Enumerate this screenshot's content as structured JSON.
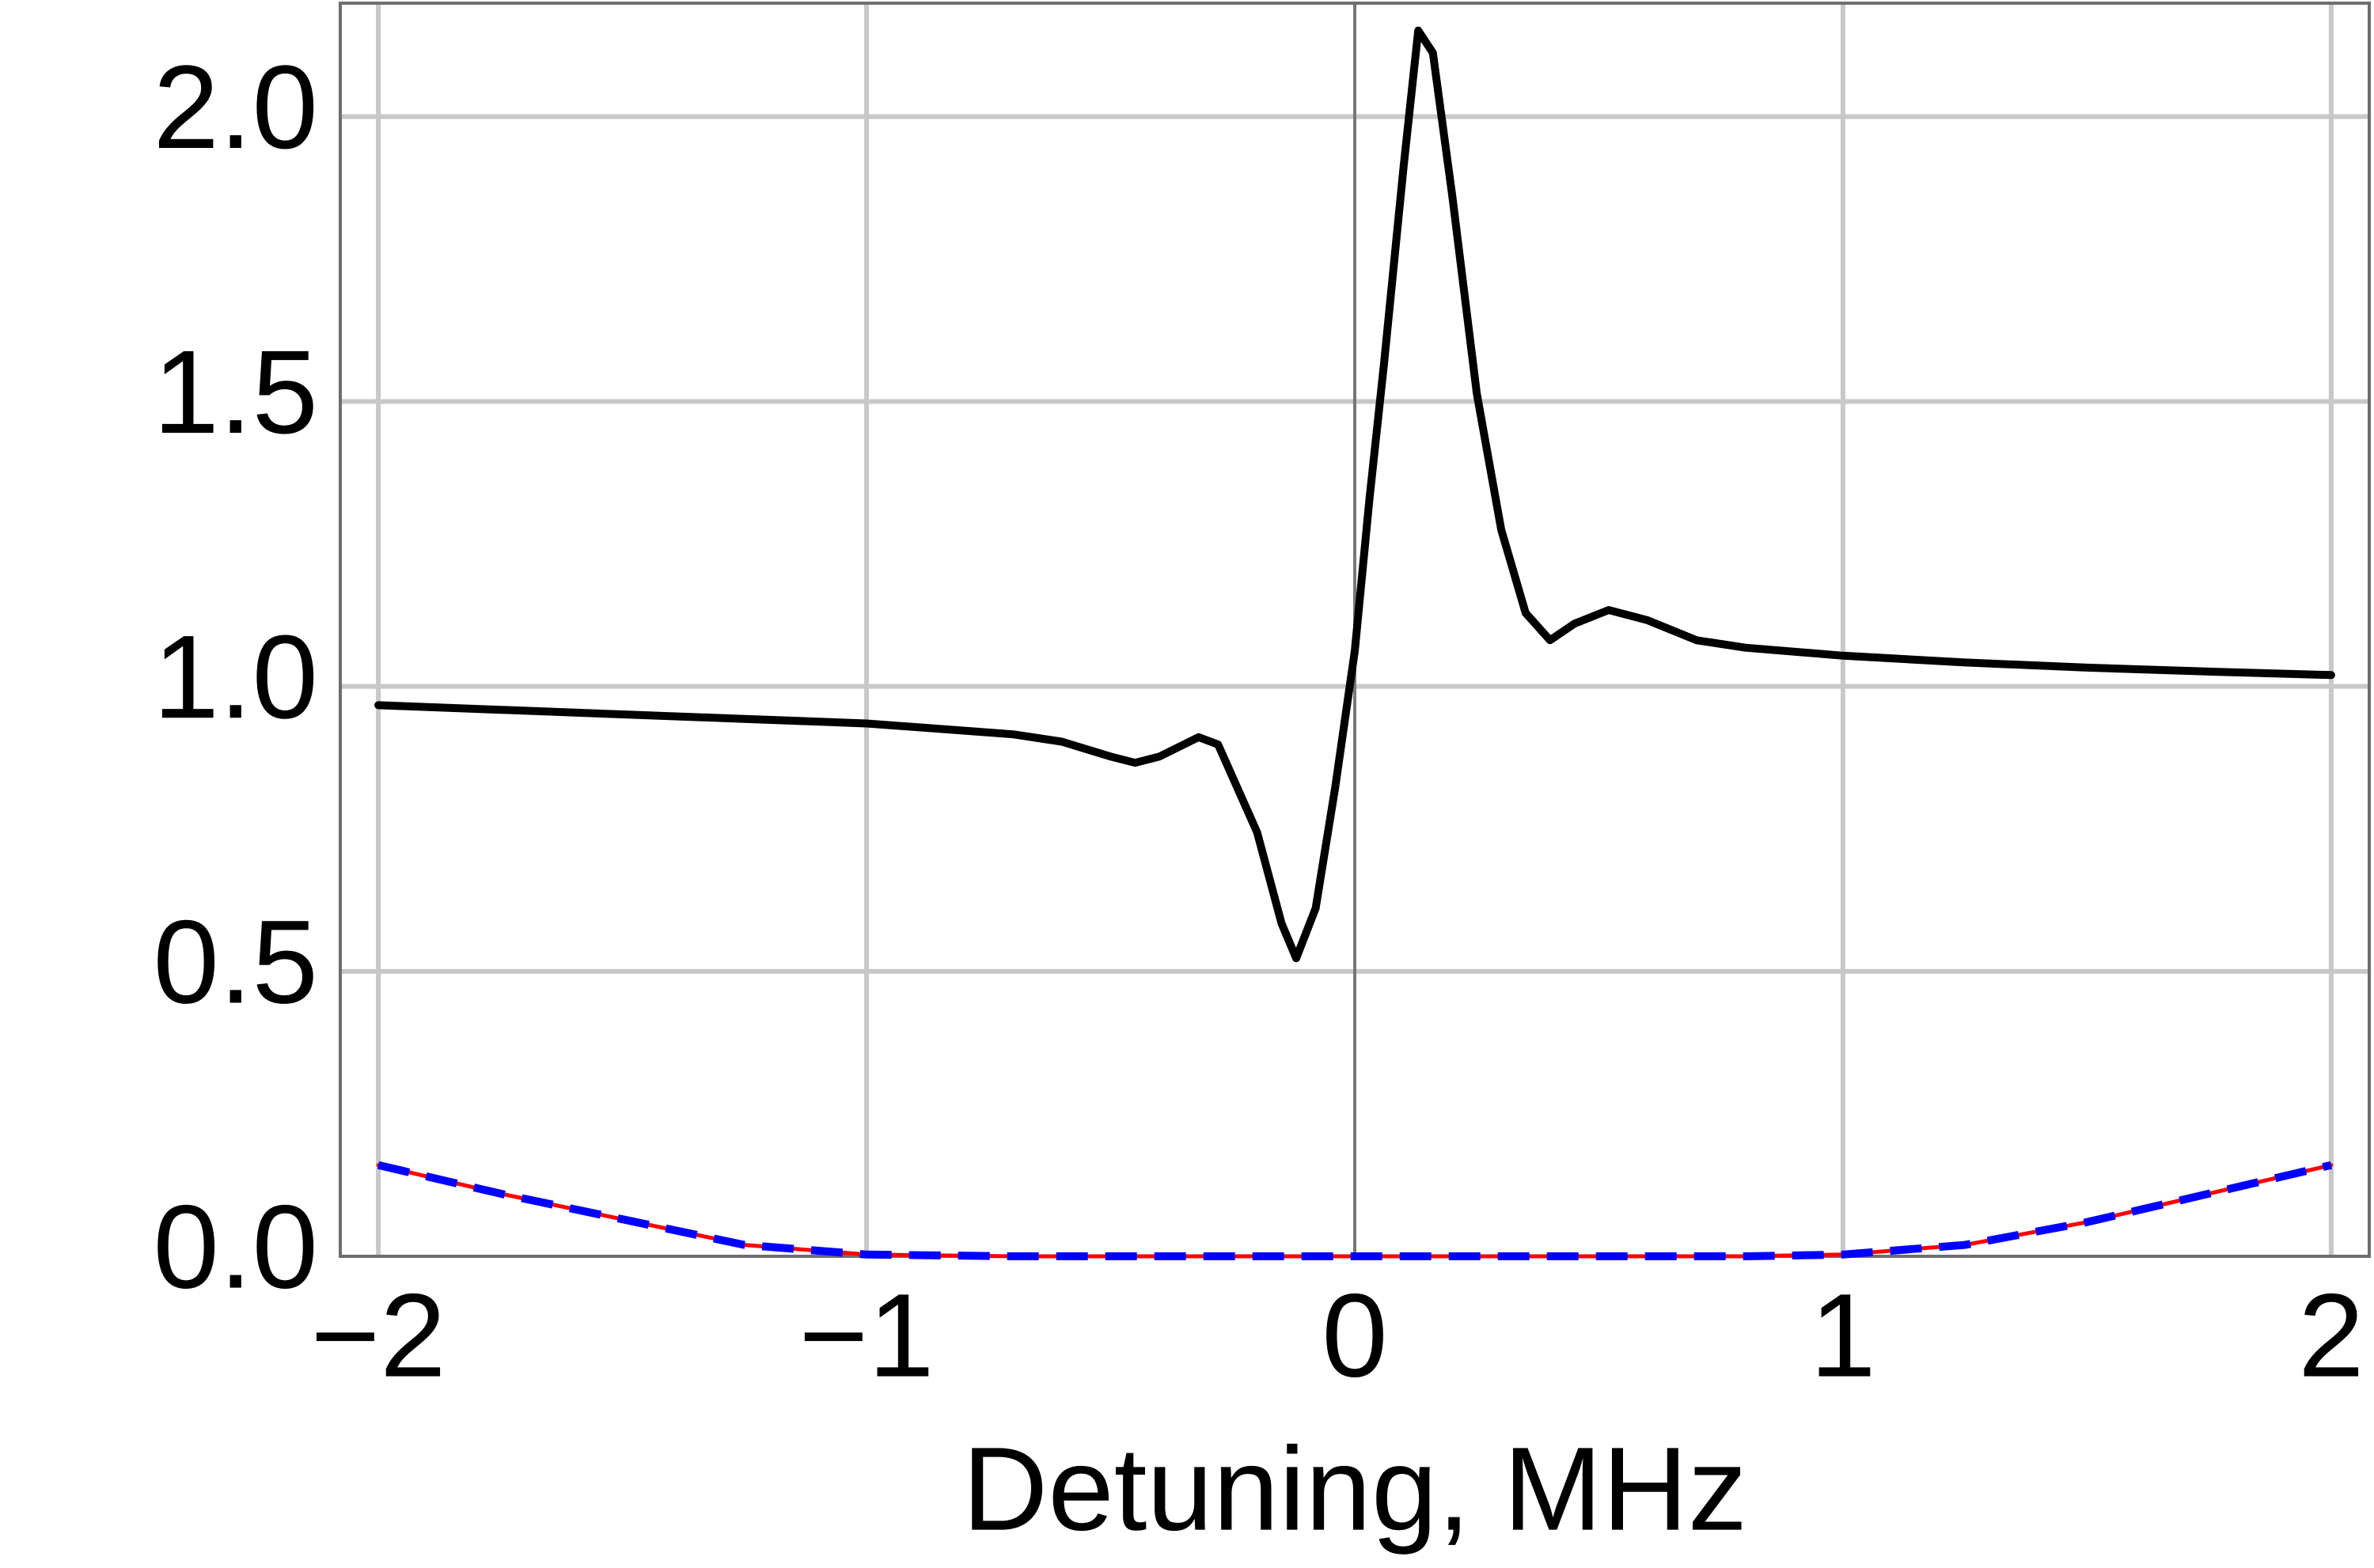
{
  "chart_data": {
    "type": "line",
    "xlabel": "Detuning, MHz",
    "x": [
      -2,
      -1.75,
      -1.5,
      -1.25,
      -1,
      -0.7,
      -0.6,
      -0.5,
      -0.45,
      -0.4,
      -0.32,
      -0.28,
      -0.2,
      -0.15,
      -0.12,
      -0.08,
      -0.04,
      0,
      0.03,
      0.06,
      0.1,
      0.13,
      0.16,
      0.2,
      0.25,
      0.3,
      0.35,
      0.4,
      0.45,
      0.52,
      0.6,
      0.7,
      0.8,
      1,
      1.25,
      1.5,
      1.75,
      2
    ],
    "series": [
      {
        "color": "#000000",
        "values": [
          0.967,
          0.959,
          0.951,
          0.943,
          0.935,
          0.916,
          0.903,
          0.877,
          0.866,
          0.877,
          0.911,
          0.898,
          0.744,
          0.584,
          0.523,
          0.611,
          0.823,
          1.062,
          1.328,
          1.567,
          1.912,
          2.151,
          2.112,
          1.859,
          1.514,
          1.275,
          1.129,
          1.081,
          1.11,
          1.134,
          1.116,
          1.081,
          1.068,
          1.054,
          1.042,
          1.033,
          1.026,
          1.02
        ]
      },
      {
        "color": "#ff0000",
        "values": [
          0.16,
          0.11,
          0.065,
          0.02,
          0.003,
          0,
          0,
          0,
          0,
          0,
          0,
          0,
          0,
          0,
          0,
          0,
          0,
          0,
          0,
          0,
          0,
          0,
          0,
          0,
          0,
          0,
          0,
          0,
          0,
          0,
          0,
          0,
          0,
          0.003,
          0.02,
          0.06,
          0.11,
          0.16
        ]
      },
      {
        "color": "#0000ff",
        "dashed": true,
        "values": [
          0.16,
          0.11,
          0.065,
          0.02,
          0.003,
          0,
          0,
          0,
          0,
          0,
          0,
          0,
          0,
          0,
          0,
          0,
          0,
          0,
          0,
          0,
          0,
          0,
          0,
          0,
          0,
          0,
          0,
          0,
          0,
          0,
          0,
          0,
          0,
          0.003,
          0.02,
          0.06,
          0.11,
          0.16
        ]
      }
    ],
    "xlim": [
      -2.078,
      2.078
    ],
    "ylim": [
      0,
      2.199
    ],
    "xticks": [
      {
        "value": -2,
        "label": "−2"
      },
      {
        "value": -1,
        "label": "−1"
      },
      0,
      1,
      2
    ],
    "yticks": [
      {
        "value": 0,
        "label": "0.0"
      },
      0.5,
      {
        "value": 1,
        "label": "1.0"
      },
      1.5,
      {
        "value": 2,
        "label": "2.0"
      }
    ],
    "grid": true
  }
}
